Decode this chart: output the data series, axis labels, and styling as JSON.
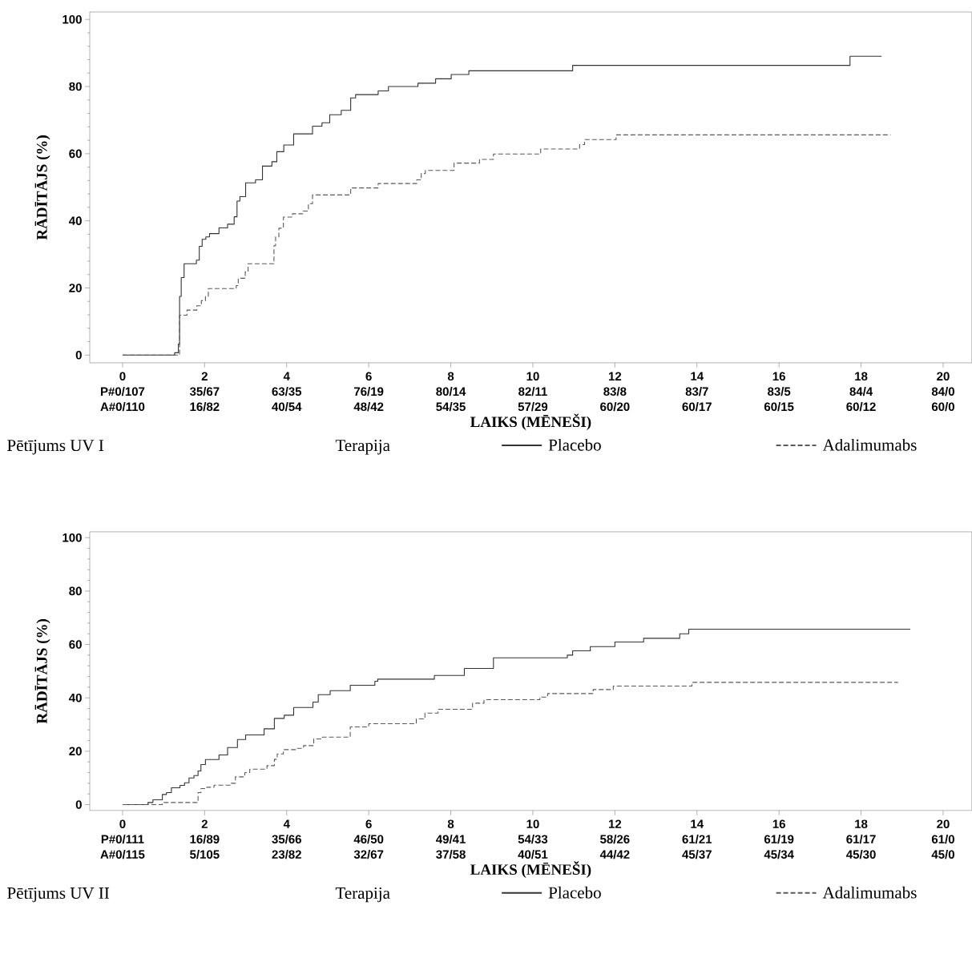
{
  "chart_data": [
    {
      "type": "step",
      "title": "Pētījums UV I",
      "legend_title": "Terapija",
      "xlabel": "LAIKS (MĒNEŠI)",
      "ylabel": "RĀDĪTĀJS (%)",
      "xlim": [
        -0.8,
        20.7
      ],
      "ylim": [
        -2.3,
        102.2
      ],
      "xticks": [
        0,
        2,
        4,
        6,
        8,
        10,
        12,
        14,
        16,
        18,
        20
      ],
      "yticks": [
        0,
        20,
        40,
        60,
        80,
        100
      ],
      "legend": "bottom",
      "series": [
        {
          "name": "Placebo",
          "color": "#333333",
          "line_style": "solid",
          "x": [
            0,
            1.27,
            1.36,
            1.39,
            1.43,
            1.5,
            1.8,
            1.87,
            1.94,
            2.03,
            2.12,
            2.35,
            2.56,
            2.72,
            2.79,
            2.86,
            3.0,
            3.24,
            3.41,
            3.64,
            3.76,
            3.93,
            4.17,
            4.63,
            4.86,
            5.05,
            5.33,
            5.56,
            5.68,
            6.23,
            6.48,
            7.2,
            7.63,
            8.01,
            8.44,
            10.97,
            17.73,
            18.5
          ],
          "values": [
            0,
            0.7,
            3.3,
            17.5,
            23.1,
            27.2,
            28.3,
            32.4,
            34.5,
            35.2,
            36.2,
            37.9,
            39,
            41.2,
            45.9,
            47.2,
            51.3,
            52.2,
            56.3,
            57.6,
            60.6,
            62.6,
            65.9,
            68.2,
            69.2,
            71.6,
            72.9,
            76.6,
            77.6,
            78.7,
            80,
            81,
            82.3,
            83.6,
            84.7,
            86.3,
            89,
            89
          ]
        },
        {
          "name": "Adalimumabs",
          "color": "#5a5a5a",
          "line_style": "dashed",
          "x": [
            0,
            1.39,
            1.57,
            1.81,
            1.92,
            2.02,
            2.09,
            2.77,
            2.82,
            2.99,
            3.06,
            3.69,
            3.73,
            3.81,
            3.92,
            4.14,
            4.39,
            4.53,
            4.63,
            5.56,
            6.23,
            7.17,
            7.28,
            7.38,
            8.08,
            8.7,
            9.04,
            10.19,
            11.14,
            11.26,
            12.03,
            18.72
          ],
          "values": [
            0,
            11.9,
            13.4,
            14.7,
            16.2,
            17.5,
            19.8,
            20.7,
            22.9,
            24.8,
            27.2,
            32.6,
            35.2,
            37.8,
            41.1,
            42.1,
            42.9,
            45.1,
            47.7,
            49.8,
            51.1,
            52.2,
            54.1,
            55,
            57.2,
            58.3,
            59.9,
            61.4,
            62.7,
            64.2,
            65.6,
            65.6
          ]
        }
      ],
      "annotations": [
        "P#0/107",
        "35/67",
        "63/35",
        "76/19",
        "80/14",
        "82/11",
        "83/8",
        "83/7",
        "83/5",
        "84/4",
        "84/0",
        "A#0/110",
        "16/82",
        "40/54",
        "48/42",
        "54/35",
        "57/29",
        "60/20",
        "60/17",
        "60/15",
        "60/12",
        "60/0"
      ]
    },
    {
      "type": "step",
      "title": "Pētījums UV II",
      "legend_title": "Terapija",
      "xlabel": "LAIKS (MĒNEŠI)",
      "ylabel": "RĀDĪTĀJS (%)",
      "xlim": [
        -0.8,
        20.7
      ],
      "ylim": [
        -2.2,
        102.2
      ],
      "xticks": [
        0,
        2,
        4,
        6,
        8,
        10,
        12,
        14,
        16,
        18,
        20
      ],
      "yticks": [
        0,
        20,
        40,
        60,
        80,
        100
      ],
      "legend": "bottom",
      "series": [
        {
          "name": "Placebo",
          "color": "#333333",
          "line_style": "solid",
          "x": [
            0,
            0.62,
            0.74,
            0.97,
            1.07,
            1.19,
            1.4,
            1.51,
            1.62,
            1.74,
            1.84,
            1.91,
            2.02,
            2.35,
            2.56,
            2.8,
            3.0,
            3.45,
            3.7,
            3.94,
            4.17,
            4.64,
            4.77,
            5.06,
            5.55,
            6.15,
            6.22,
            7.6,
            8.33,
            9.04,
            10.84,
            10.97,
            11.4,
            12.0,
            12.7,
            13.58,
            13.8,
            19.2
          ],
          "values": [
            0,
            0.8,
            1.8,
            3.8,
            4.5,
            6.3,
            7.2,
            8.2,
            10,
            10.9,
            12.6,
            15,
            16.9,
            18.6,
            21.4,
            24.4,
            26.1,
            28.4,
            32.3,
            33.5,
            36.4,
            38.4,
            41.2,
            42.7,
            44.7,
            46.2,
            47,
            48.4,
            51,
            55,
            56,
            57.6,
            59.2,
            60.9,
            62.3,
            64,
            65.7,
            65.7
          ]
        },
        {
          "name": "Adalimumabs",
          "color": "#5a5a5a",
          "line_style": "dashed",
          "x": [
            0,
            0.97,
            1.84,
            1.91,
            2.05,
            2.23,
            2.65,
            2.75,
            2.98,
            3.1,
            3.52,
            3.7,
            3.77,
            3.92,
            4.26,
            4.41,
            4.66,
            4.87,
            5.55,
            6.0,
            7.16,
            7.37,
            7.69,
            8.53,
            8.81,
            10.17,
            10.36,
            11.47,
            11.96,
            13.88,
            18.9
          ],
          "values": [
            0,
            0.8,
            4.5,
            6,
            6.5,
            7.3,
            8,
            10.4,
            12,
            13.3,
            14.6,
            17,
            19,
            20.6,
            21.1,
            22.1,
            24.6,
            25.3,
            29.1,
            30.3,
            32.1,
            34.3,
            35.7,
            38,
            39.3,
            40.3,
            41.6,
            43.1,
            44.4,
            45.8,
            45.8
          ]
        }
      ],
      "annotations": [
        "P#0/111",
        "16/89",
        "35/66",
        "46/50",
        "49/41",
        "54/33",
        "58/26",
        "61/21",
        "61/19",
        "61/17",
        "61/0",
        "A#0/115",
        "5/105",
        "23/82",
        "32/67",
        "37/58",
        "40/51",
        "44/42",
        "45/37",
        "45/34",
        "45/30",
        "45/0"
      ]
    }
  ]
}
